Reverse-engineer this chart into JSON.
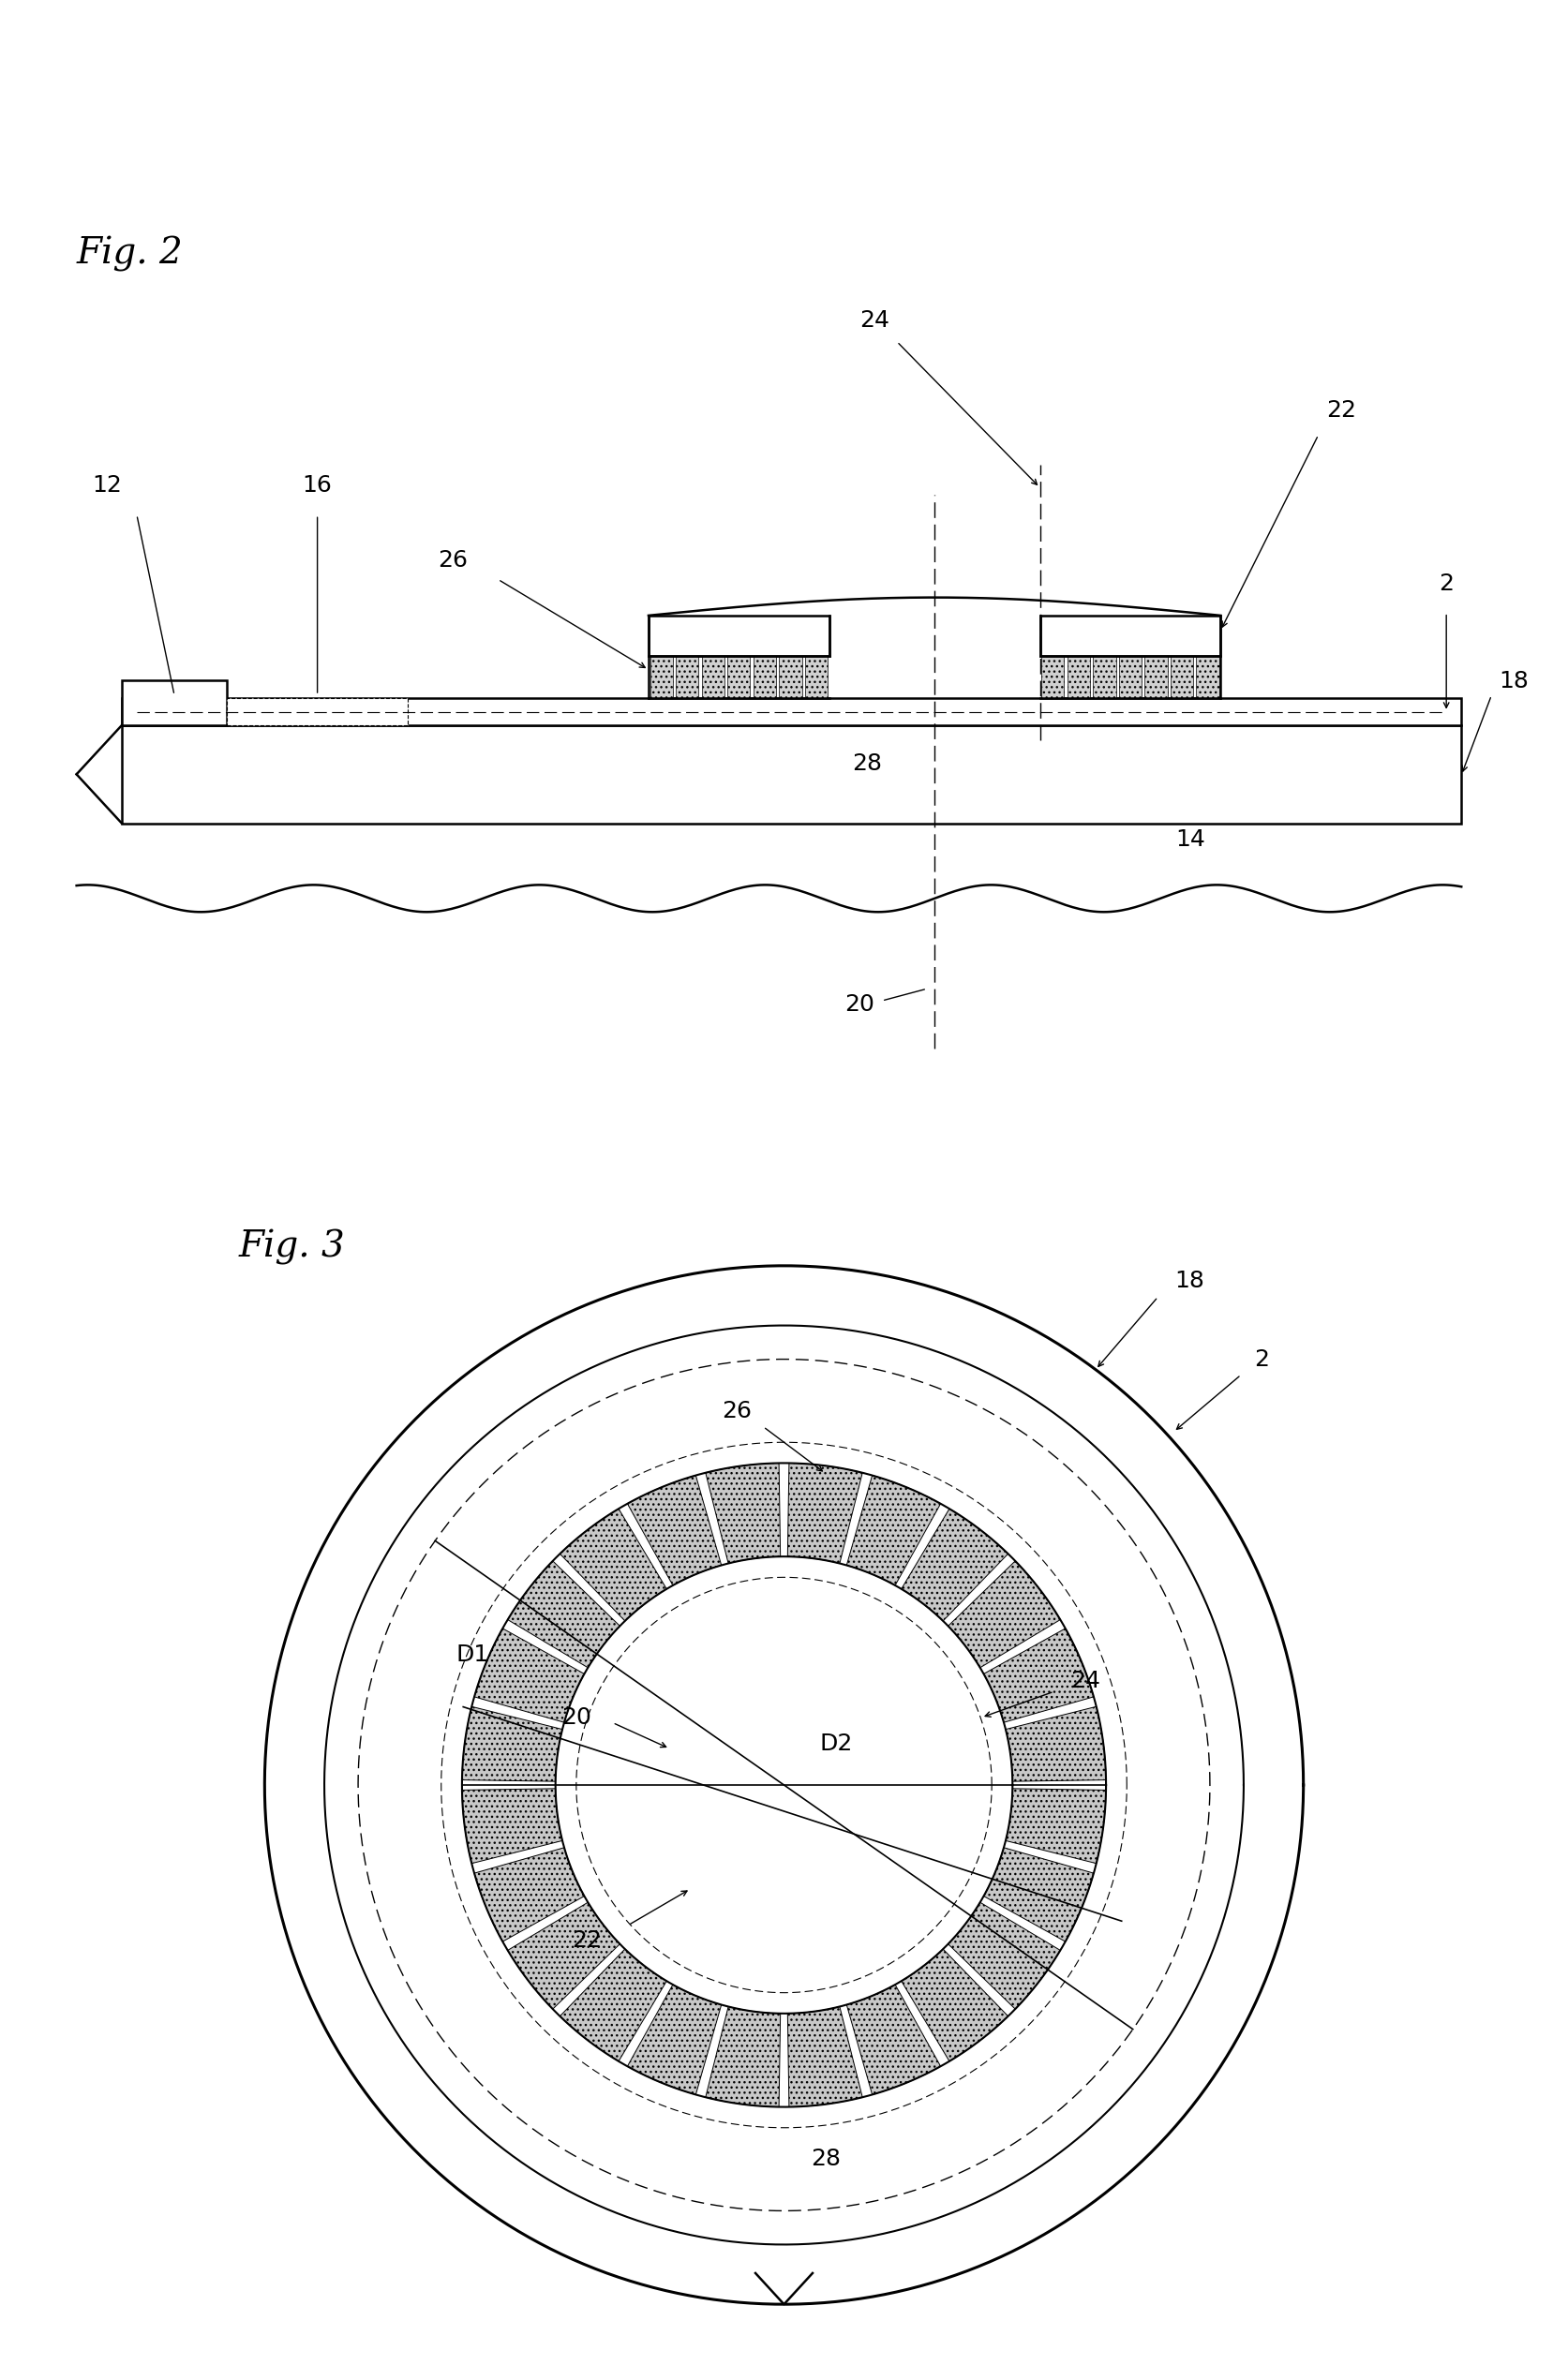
{
  "fig2_title": "Fig. 2",
  "fig3_title": "Fig. 3",
  "bg_color": "#ffffff",
  "line_color": "#000000",
  "lw": 1.8,
  "label_fs": 18
}
